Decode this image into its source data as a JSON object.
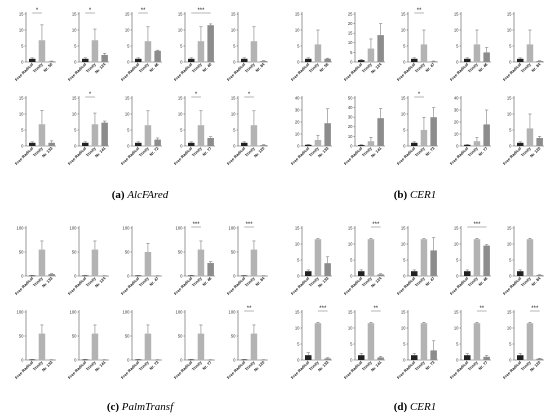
{
  "captions": [
    {
      "letter": "(a)",
      "gene": "AlcFAred"
    },
    {
      "letter": "(b)",
      "gene": "CER1"
    },
    {
      "letter": "(c)",
      "gene": "PalmTransf"
    },
    {
      "letter": "(d)",
      "gene": "CER1"
    }
  ],
  "colors": {
    "bar_light": "#b3b3b3",
    "bar_dark": "#8c8c8c",
    "bar_black": "#222222",
    "axis": "#555555"
  },
  "chart_data": [
    {
      "type": "bar",
      "panel": "a",
      "row": 1,
      "categories": [
        "Free Radical",
        "Trinity",
        "Nr. 50"
      ],
      "values": [
        1,
        6.8,
        0.2
      ],
      "errors": [
        0.3,
        4.8,
        0.1
      ],
      "ylim": [
        0,
        15
      ],
      "yticks": [
        0,
        5,
        10,
        15
      ],
      "significance": [
        {
          "from": 0,
          "to": 1,
          "label": "*"
        }
      ]
    },
    {
      "type": "bar",
      "panel": "a",
      "row": 1,
      "categories": [
        "Free Radical",
        "Trinity",
        "Nr. 124"
      ],
      "values": [
        1,
        6.8,
        2.2
      ],
      "errors": [
        0.3,
        3.5,
        0.5
      ],
      "ylim": [
        0,
        15
      ],
      "yticks": [
        0,
        5,
        10,
        15
      ],
      "significance": [
        {
          "from": 0,
          "to": 1,
          "label": "*"
        }
      ]
    },
    {
      "type": "bar",
      "panel": "a",
      "row": 1,
      "categories": [
        "Free Radical",
        "Trinity",
        "Nr. 46"
      ],
      "values": [
        1,
        6.5,
        3.5
      ],
      "errors": [
        0.3,
        4.5,
        0.2
      ],
      "ylim": [
        0,
        15
      ],
      "yticks": [
        0,
        5,
        10,
        15
      ],
      "significance": [
        {
          "from": 0,
          "to": 1,
          "label": "**"
        }
      ]
    },
    {
      "type": "bar",
      "panel": "a",
      "row": 1,
      "categories": [
        "Free Radical",
        "Trinity",
        "Nr. 40"
      ],
      "values": [
        1,
        6.5,
        11.5
      ],
      "errors": [
        0.3,
        4.5,
        0.4
      ],
      "ylim": [
        0,
        15
      ],
      "yticks": [
        0,
        5,
        10,
        15
      ],
      "significance": [
        {
          "from": 0,
          "to": 2,
          "label": "***"
        }
      ]
    },
    {
      "type": "bar",
      "panel": "a",
      "row": 1,
      "categories": [
        "Free Radical",
        "Trinity",
        "Nr. 84"
      ],
      "values": [
        1,
        6.5,
        0.3
      ],
      "errors": [
        0.3,
        4.5,
        0.1
      ],
      "ylim": [
        0,
        15
      ],
      "yticks": [
        0,
        5,
        10,
        15
      ],
      "significance": []
    },
    {
      "type": "bar",
      "panel": "a",
      "row": 2,
      "categories": [
        "Free Radical",
        "Trinity",
        "Nr. 133"
      ],
      "values": [
        1,
        6.8,
        1.0
      ],
      "errors": [
        0.3,
        4.3,
        0.6
      ],
      "ylim": [
        0,
        15
      ],
      "yticks": [
        0,
        5,
        10,
        15
      ],
      "significance": []
    },
    {
      "type": "bar",
      "panel": "a",
      "row": 2,
      "categories": [
        "Free Radical",
        "Trinity",
        "Nr. 141"
      ],
      "values": [
        1,
        6.8,
        7.3
      ],
      "errors": [
        0.3,
        3.5,
        0.5
      ],
      "ylim": [
        0,
        15
      ],
      "yticks": [
        0,
        5,
        10,
        15
      ],
      "significance": [
        {
          "from": 0,
          "to": 1,
          "label": "*"
        }
      ]
    },
    {
      "type": "bar",
      "panel": "a",
      "row": 2,
      "categories": [
        "Free Radical",
        "Trinity",
        "Nr. 72"
      ],
      "values": [
        1,
        6.5,
        2.0
      ],
      "errors": [
        0.3,
        4.5,
        0.5
      ],
      "ylim": [
        0,
        15
      ],
      "yticks": [
        0,
        5,
        10,
        15
      ],
      "significance": []
    },
    {
      "type": "bar",
      "panel": "a",
      "row": 2,
      "categories": [
        "Free Radical",
        "Trinity",
        "Nr. 77"
      ],
      "values": [
        1,
        6.5,
        2.5
      ],
      "errors": [
        0.3,
        4.5,
        0.4
      ],
      "ylim": [
        0,
        15
      ],
      "yticks": [
        0,
        5,
        10,
        15
      ],
      "significance": [
        {
          "from": 0,
          "to": 1,
          "label": "*"
        }
      ]
    },
    {
      "type": "bar",
      "panel": "a",
      "row": 2,
      "categories": [
        "Free Radical",
        "Trinity",
        "Nr. 120"
      ],
      "values": [
        1,
        6.5,
        0.3
      ],
      "errors": [
        0.3,
        4.5,
        0.1
      ],
      "ylim": [
        0,
        15
      ],
      "yticks": [
        0,
        5,
        10,
        15
      ],
      "significance": [
        {
          "from": 0,
          "to": 1,
          "label": "*"
        }
      ]
    },
    {
      "type": "bar",
      "panel": "b",
      "row": 1,
      "categories": [
        "Free Radical",
        "Trinity",
        "Nr. 55"
      ],
      "values": [
        1,
        5.5,
        1.0
      ],
      "errors": [
        0.3,
        4.5,
        0.2
      ],
      "ylim": [
        0,
        15
      ],
      "yticks": [
        0,
        5,
        10,
        15
      ],
      "significance": []
    },
    {
      "type": "bar",
      "panel": "b",
      "row": 1,
      "categories": [
        "Free Radical",
        "Trinity",
        "Nr. 124"
      ],
      "values": [
        1,
        7,
        14
      ],
      "errors": [
        0.3,
        5,
        6
      ],
      "ylim": [
        0,
        25
      ],
      "yticks": [
        0,
        5,
        10,
        15,
        20,
        25
      ],
      "significance": []
    },
    {
      "type": "bar",
      "panel": "b",
      "row": 1,
      "categories": [
        "Free Radical",
        "Trinity",
        "Nr. 47"
      ],
      "values": [
        1,
        5.5,
        0.2
      ],
      "errors": [
        0.3,
        4.5,
        0.1
      ],
      "ylim": [
        0,
        15
      ],
      "yticks": [
        0,
        5,
        10,
        15
      ],
      "significance": [
        {
          "from": 0,
          "to": 1,
          "label": "**"
        }
      ]
    },
    {
      "type": "bar",
      "panel": "b",
      "row": 1,
      "categories": [
        "Free Radical",
        "Trinity",
        "Nr. 46"
      ],
      "values": [
        1,
        5.5,
        3.0
      ],
      "errors": [
        0.3,
        4.5,
        1.5
      ],
      "ylim": [
        0,
        15
      ],
      "yticks": [
        0,
        5,
        10,
        15
      ],
      "significance": []
    },
    {
      "type": "bar",
      "panel": "b",
      "row": 1,
      "categories": [
        "Free Radical",
        "Trinity",
        "Nr. 84"
      ],
      "values": [
        1,
        5.5,
        0.3
      ],
      "errors": [
        0.3,
        4.5,
        0.1
      ],
      "ylim": [
        0,
        15
      ],
      "yticks": [
        0,
        5,
        10,
        15
      ],
      "significance": []
    },
    {
      "type": "bar",
      "panel": "b",
      "row": 2,
      "categories": [
        "Free Radical",
        "Trinity",
        "Nr. 133"
      ],
      "values": [
        1,
        5,
        19
      ],
      "errors": [
        0.3,
        4,
        12
      ],
      "ylim": [
        0,
        40
      ],
      "yticks": [
        0,
        10,
        20,
        30,
        40
      ],
      "significance": []
    },
    {
      "type": "bar",
      "panel": "b",
      "row": 2,
      "categories": [
        "Free Radical",
        "Trinity",
        "Nr. 141"
      ],
      "values": [
        1,
        5,
        29
      ],
      "errors": [
        0.3,
        4,
        10
      ],
      "ylim": [
        0,
        50
      ],
      "yticks": [
        0,
        10,
        20,
        30,
        40,
        50
      ],
      "significance": []
    },
    {
      "type": "bar",
      "panel": "b",
      "row": 2,
      "categories": [
        "Free Radical",
        "Trinity",
        "Nr. 73"
      ],
      "values": [
        1,
        5,
        9
      ],
      "errors": [
        0.3,
        4,
        3
      ],
      "ylim": [
        0,
        15
      ],
      "yticks": [
        0,
        5,
        10,
        15
      ],
      "significance": [
        {
          "from": 0,
          "to": 1,
          "label": "*"
        }
      ]
    },
    {
      "type": "bar",
      "panel": "b",
      "row": 2,
      "categories": [
        "Free Radical",
        "Trinity",
        "Nr. 77"
      ],
      "values": [
        1,
        4,
        18
      ],
      "errors": [
        0.3,
        3,
        12
      ],
      "ylim": [
        0,
        40
      ],
      "yticks": [
        0,
        10,
        20,
        30,
        40
      ],
      "significance": []
    },
    {
      "type": "bar",
      "panel": "b",
      "row": 2,
      "categories": [
        "Free Radical",
        "Trinity",
        "Nr. 120"
      ],
      "values": [
        1,
        5.5,
        2.5
      ],
      "errors": [
        0.3,
        4.5,
        0.5
      ],
      "ylim": [
        0,
        15
      ],
      "yticks": [
        0,
        5,
        10,
        15
      ],
      "significance": []
    },
    {
      "type": "bar",
      "panel": "c",
      "row": 1,
      "categories": [
        "Free Radical",
        "Trinity",
        "Nr. 133"
      ],
      "values": [
        1,
        55,
        4
      ],
      "errors": [
        0.2,
        18,
        1
      ],
      "ylim": [
        0,
        100
      ],
      "yticks": [
        0,
        50,
        100
      ],
      "significance": []
    },
    {
      "type": "bar",
      "panel": "c",
      "row": 1,
      "categories": [
        "Free Radical",
        "Trinity",
        "Nr. 124"
      ],
      "values": [
        1,
        55,
        0.5
      ],
      "errors": [
        0.2,
        18,
        0.2
      ],
      "ylim": [
        0,
        100
      ],
      "yticks": [
        0,
        50,
        100
      ],
      "significance": []
    },
    {
      "type": "bar",
      "panel": "c",
      "row": 1,
      "categories": [
        "Free Radical",
        "Trinity",
        "Nr. 47"
      ],
      "values": [
        1,
        50,
        0.5
      ],
      "errors": [
        0.2,
        18,
        0.2
      ],
      "ylim": [
        0,
        100
      ],
      "yticks": [
        0,
        50,
        100
      ],
      "significance": []
    },
    {
      "type": "bar",
      "panel": "c",
      "row": 1,
      "categories": [
        "Free Radical",
        "Trinity",
        "Nr. 46"
      ],
      "values": [
        1,
        55,
        27
      ],
      "errors": [
        0.2,
        18,
        3
      ],
      "ylim": [
        0,
        100
      ],
      "yticks": [
        0,
        50,
        100
      ],
      "significance": [
        {
          "from": 0,
          "to": 1,
          "label": "***"
        }
      ]
    },
    {
      "type": "bar",
      "panel": "c",
      "row": 1,
      "categories": [
        "Free Radical",
        "Trinity",
        "Nr. 84"
      ],
      "values": [
        1,
        55,
        0.5
      ],
      "errors": [
        0.2,
        18,
        0.2
      ],
      "ylim": [
        0,
        100
      ],
      "yticks": [
        0,
        50,
        100
      ],
      "significance": [
        {
          "from": 0,
          "to": 1,
          "label": "***"
        }
      ]
    },
    {
      "type": "bar",
      "panel": "c",
      "row": 2,
      "categories": [
        "Free Radical",
        "Trinity",
        "Nr. 133"
      ],
      "values": [
        1,
        55,
        0.5
      ],
      "errors": [
        0.2,
        18,
        0.2
      ],
      "ylim": [
        0,
        100
      ],
      "yticks": [
        0,
        50,
        100
      ],
      "significance": []
    },
    {
      "type": "bar",
      "panel": "c",
      "row": 2,
      "categories": [
        "Free Radical",
        "Trinity",
        "Nr. 141"
      ],
      "values": [
        1,
        55,
        0.5
      ],
      "errors": [
        0.2,
        18,
        0.2
      ],
      "ylim": [
        0,
        100
      ],
      "yticks": [
        0,
        50,
        100
      ],
      "significance": []
    },
    {
      "type": "bar",
      "panel": "c",
      "row": 2,
      "categories": [
        "Free Radical",
        "Trinity",
        "Nr. 73"
      ],
      "values": [
        1,
        55,
        0.5
      ],
      "errors": [
        0.2,
        18,
        0.2
      ],
      "ylim": [
        0,
        100
      ],
      "yticks": [
        0,
        50,
        100
      ],
      "significance": []
    },
    {
      "type": "bar",
      "panel": "c",
      "row": 2,
      "categories": [
        "Free Radical",
        "Trinity",
        "Nr. 77"
      ],
      "values": [
        1,
        55,
        0.5
      ],
      "errors": [
        0.2,
        18,
        0.2
      ],
      "ylim": [
        0,
        100
      ],
      "yticks": [
        0,
        50,
        100
      ],
      "significance": []
    },
    {
      "type": "bar",
      "panel": "c",
      "row": 2,
      "categories": [
        "Free Radical",
        "Trinity",
        "Nr. 120"
      ],
      "values": [
        1,
        55,
        0.5
      ],
      "errors": [
        0.2,
        18,
        0.2
      ],
      "ylim": [
        0,
        100
      ],
      "yticks": [
        0,
        50,
        100
      ],
      "significance": [
        {
          "from": 0,
          "to": 1,
          "label": "**"
        }
      ]
    },
    {
      "type": "bar",
      "panel": "d",
      "row": 1,
      "categories": [
        "Free Radical",
        "Trinity",
        "Nr. 133"
      ],
      "values": [
        1.5,
        11.5,
        4
      ],
      "errors": [
        0.4,
        0.2,
        2
      ],
      "ylim": [
        0,
        15
      ],
      "yticks": [
        0,
        5,
        10,
        15
      ],
      "significance": []
    },
    {
      "type": "bar",
      "panel": "d",
      "row": 1,
      "categories": [
        "Free Radical",
        "Trinity",
        "Nr. 124"
      ],
      "values": [
        1.5,
        11.5,
        0.5
      ],
      "errors": [
        0.4,
        0.3,
        0.2
      ],
      "ylim": [
        0,
        15
      ],
      "yticks": [
        0,
        5,
        10,
        15
      ],
      "significance": [
        {
          "from": 1,
          "to": 2,
          "label": "***"
        }
      ]
    },
    {
      "type": "bar",
      "panel": "d",
      "row": 1,
      "categories": [
        "Free Radical",
        "Trinity",
        "Nr. 47"
      ],
      "values": [
        1.5,
        11.5,
        8
      ],
      "errors": [
        0.4,
        0.2,
        4
      ],
      "ylim": [
        0,
        15
      ],
      "yticks": [
        0,
        5,
        10,
        15
      ],
      "significance": []
    },
    {
      "type": "bar",
      "panel": "d",
      "row": 1,
      "categories": [
        "Free Radical",
        "Trinity",
        "Nr. 46"
      ],
      "values": [
        1.5,
        11.5,
        9.5
      ],
      "errors": [
        0.4,
        0.3,
        0.3
      ],
      "ylim": [
        0,
        15
      ],
      "yticks": [
        0,
        5,
        10,
        15
      ],
      "significance": [
        {
          "from": 0,
          "to": 2,
          "label": "***"
        }
      ]
    },
    {
      "type": "bar",
      "panel": "d",
      "row": 1,
      "categories": [
        "Free Radical",
        "Trinity",
        "Nr. 84"
      ],
      "values": [
        1.5,
        11.5,
        0.3
      ],
      "errors": [
        0.4,
        0.3,
        0.1
      ],
      "ylim": [
        0,
        15
      ],
      "yticks": [
        0,
        5,
        10,
        15
      ],
      "significance": []
    },
    {
      "type": "bar",
      "panel": "d",
      "row": 2,
      "categories": [
        "Free Radical",
        "Trinity",
        "Nr. 133"
      ],
      "values": [
        1.5,
        11.5,
        0.5
      ],
      "errors": [
        0.8,
        0.3,
        0.2
      ],
      "ylim": [
        0,
        15
      ],
      "yticks": [
        0,
        5,
        10,
        15
      ],
      "significance": [
        {
          "from": 1,
          "to": 2,
          "label": "***"
        }
      ]
    },
    {
      "type": "bar",
      "panel": "d",
      "row": 2,
      "categories": [
        "Free Radical",
        "Trinity",
        "Nr. 141"
      ],
      "values": [
        1.5,
        11.5,
        0.8
      ],
      "errors": [
        0.5,
        0.3,
        0.3
      ],
      "ylim": [
        0,
        15
      ],
      "yticks": [
        0,
        5,
        10,
        15
      ],
      "significance": [
        {
          "from": 1,
          "to": 2,
          "label": "**"
        }
      ]
    },
    {
      "type": "bar",
      "panel": "d",
      "row": 2,
      "categories": [
        "Free Radical",
        "Trinity",
        "Nr. 73"
      ],
      "values": [
        1.5,
        11.5,
        3
      ],
      "errors": [
        0.5,
        0.3,
        3
      ],
      "ylim": [
        0,
        15
      ],
      "yticks": [
        0,
        5,
        10,
        15
      ],
      "significance": []
    },
    {
      "type": "bar",
      "panel": "d",
      "row": 2,
      "categories": [
        "Free Radical",
        "Trinity",
        "Nr. 77"
      ],
      "values": [
        1.5,
        11.5,
        1.0
      ],
      "errors": [
        0.5,
        0.3,
        0.4
      ],
      "ylim": [
        0,
        15
      ],
      "yticks": [
        0,
        5,
        10,
        15
      ],
      "significance": [
        {
          "from": 1,
          "to": 2,
          "label": "**"
        }
      ]
    },
    {
      "type": "bar",
      "panel": "d",
      "row": 2,
      "categories": [
        "Free Radical",
        "Trinity",
        "Nr. 120"
      ],
      "values": [
        1.5,
        11.5,
        0.4
      ],
      "errors": [
        0.5,
        0.3,
        0.1
      ],
      "ylim": [
        0,
        15
      ],
      "yticks": [
        0,
        5,
        10,
        15
      ],
      "significance": [
        {
          "from": 1,
          "to": 2,
          "label": "***"
        }
      ]
    }
  ]
}
